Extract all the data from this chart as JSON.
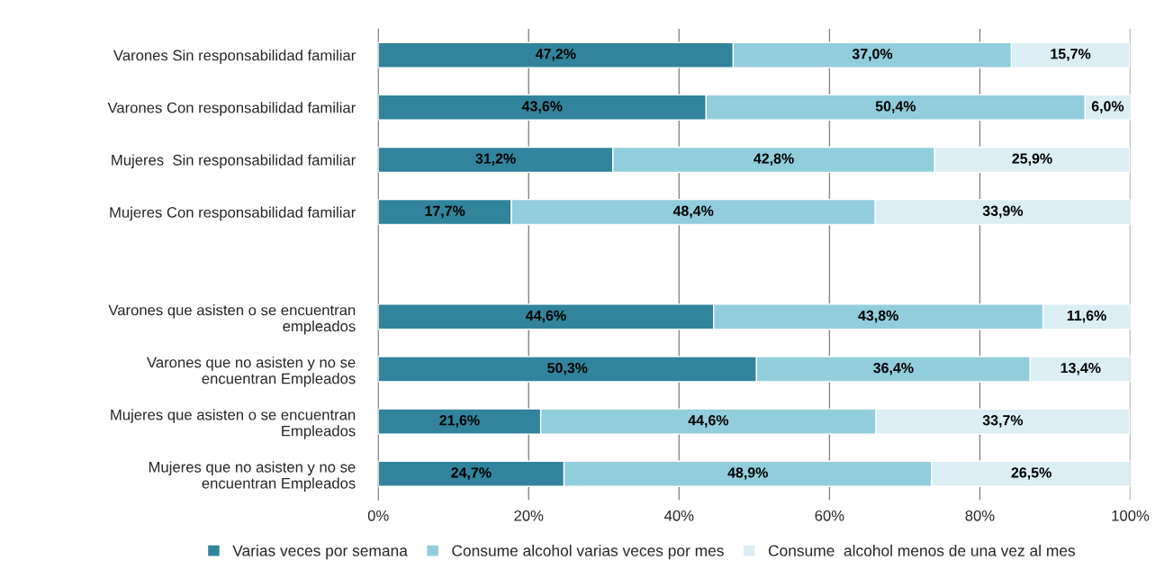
{
  "chart_data": {
    "type": "bar",
    "orientation": "horizontal",
    "stacked": true,
    "categories": [
      "Varones Sin responsabilidad familiar",
      "Varones Con responsabilidad familiar",
      "Mujeres  Sin responsabilidad familiar",
      "Mujeres Con responsabilidad familiar",
      null,
      "Varones que asisten o se encuentran\nempleados",
      "Varones que no asisten y no se\nencuentran Empleados",
      "Mujeres que asisten o se encuentran\nEmpleados",
      "Mujeres que no asisten y no se\nencuentran Empleados"
    ],
    "series": [
      {
        "name": "Varias veces por semana",
        "color": "#31849b",
        "values": [
          47.2,
          43.6,
          31.2,
          17.7,
          null,
          44.6,
          50.3,
          21.6,
          24.7
        ],
        "value_labels": [
          "47,2%",
          "43,6%",
          "31,2%",
          "17,7%",
          null,
          "44,6%",
          "50,3%",
          "21,6%",
          "24,7%"
        ]
      },
      {
        "name": "Consume alcohol varias veces por mes",
        "color": "#92cddc",
        "values": [
          37.0,
          50.4,
          42.8,
          48.4,
          null,
          43.8,
          36.4,
          44.6,
          48.9
        ],
        "value_labels": [
          "37,0%",
          "50,4%",
          "42,8%",
          "48,4%",
          null,
          "43,8%",
          "36,4%",
          "44,6%",
          "48,9%"
        ]
      },
      {
        "name": "Consume  alcohol menos de una vez al mes",
        "color": "#daeef3",
        "values": [
          15.7,
          6.0,
          25.9,
          33.9,
          null,
          11.6,
          13.4,
          33.7,
          26.5
        ],
        "value_labels": [
          "15,7%",
          "6,0%",
          "25,9%",
          "33,9%",
          null,
          "11,6%",
          "13,4%",
          "33,7%",
          "26,5%"
        ]
      }
    ],
    "xlim": [
      0,
      100
    ],
    "xticks": [
      {
        "value": 0,
        "label": "0%"
      },
      {
        "value": 20,
        "label": "20%"
      },
      {
        "value": 40,
        "label": "40%"
      },
      {
        "value": 60,
        "label": "60%"
      },
      {
        "value": 80,
        "label": "80%"
      },
      {
        "value": 100,
        "label": "100%"
      }
    ],
    "grid": "x",
    "legend": "bottom"
  }
}
